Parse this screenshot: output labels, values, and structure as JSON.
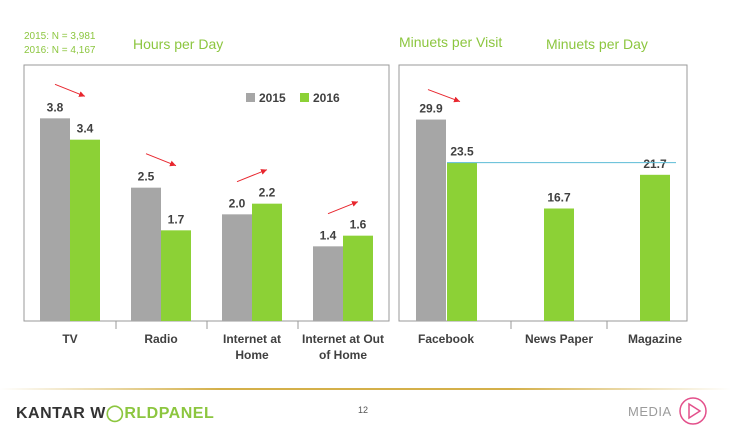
{
  "sample_notes": [
    "2015: N = 3,981",
    "2016: N = 4,167"
  ],
  "colors": {
    "series_2015": "#a6a6a6",
    "series_2016": "#8cd136",
    "heading_green": "#8cc63f",
    "trend_arrow": "#e8262e",
    "reference_line": "#5bbcd6",
    "footer_line": "#d4b04a",
    "media_icon": "#e3508b"
  },
  "chart_data": [
    {
      "type": "bar",
      "title": "Hours per Day",
      "categories": [
        "TV",
        "Radio",
        "Internet at Home",
        "Internet at Out of Home"
      ],
      "category_lines": [
        [
          "TV"
        ],
        [
          "Radio"
        ],
        [
          "Internet at",
          "Home"
        ],
        [
          "Internet at Out",
          "of Home"
        ]
      ],
      "series": [
        {
          "name": "2015",
          "values": [
            3.8,
            2.5,
            2.0,
            1.4
          ],
          "labels": [
            "3.8",
            "2.5",
            "2.0",
            "1.4"
          ]
        },
        {
          "name": "2016",
          "values": [
            3.4,
            1.7,
            2.2,
            1.6
          ],
          "labels": [
            "3.4",
            "1.7",
            "2.2",
            "1.6"
          ]
        }
      ],
      "trend": [
        "down",
        "down",
        "up",
        "up"
      ],
      "ylim": [
        0,
        4.8
      ],
      "legend": "top-right",
      "grid": false
    },
    {
      "type": "bar",
      "titles": [
        "Minuets per Visit",
        "Minuets per Day"
      ],
      "categories": [
        "Facebook",
        "News Paper",
        "Magazine"
      ],
      "series": [
        {
          "name": "2015",
          "values": [
            29.9,
            null,
            null
          ],
          "labels": [
            "29.9",
            "",
            ""
          ]
        },
        {
          "name": "2016",
          "values": [
            23.5,
            16.7,
            21.7
          ],
          "labels": [
            "23.5",
            "16.7",
            "21.7"
          ]
        }
      ],
      "trend": [
        "down",
        null,
        null
      ],
      "reference_line": 23.5,
      "ylim": [
        0,
        38
      ],
      "grid": false
    }
  ],
  "footer": {
    "brand_part1": "KANTAR W",
    "brand_part2": "RLDPANEL",
    "page_number": "12",
    "media_label": "MEDIA"
  }
}
